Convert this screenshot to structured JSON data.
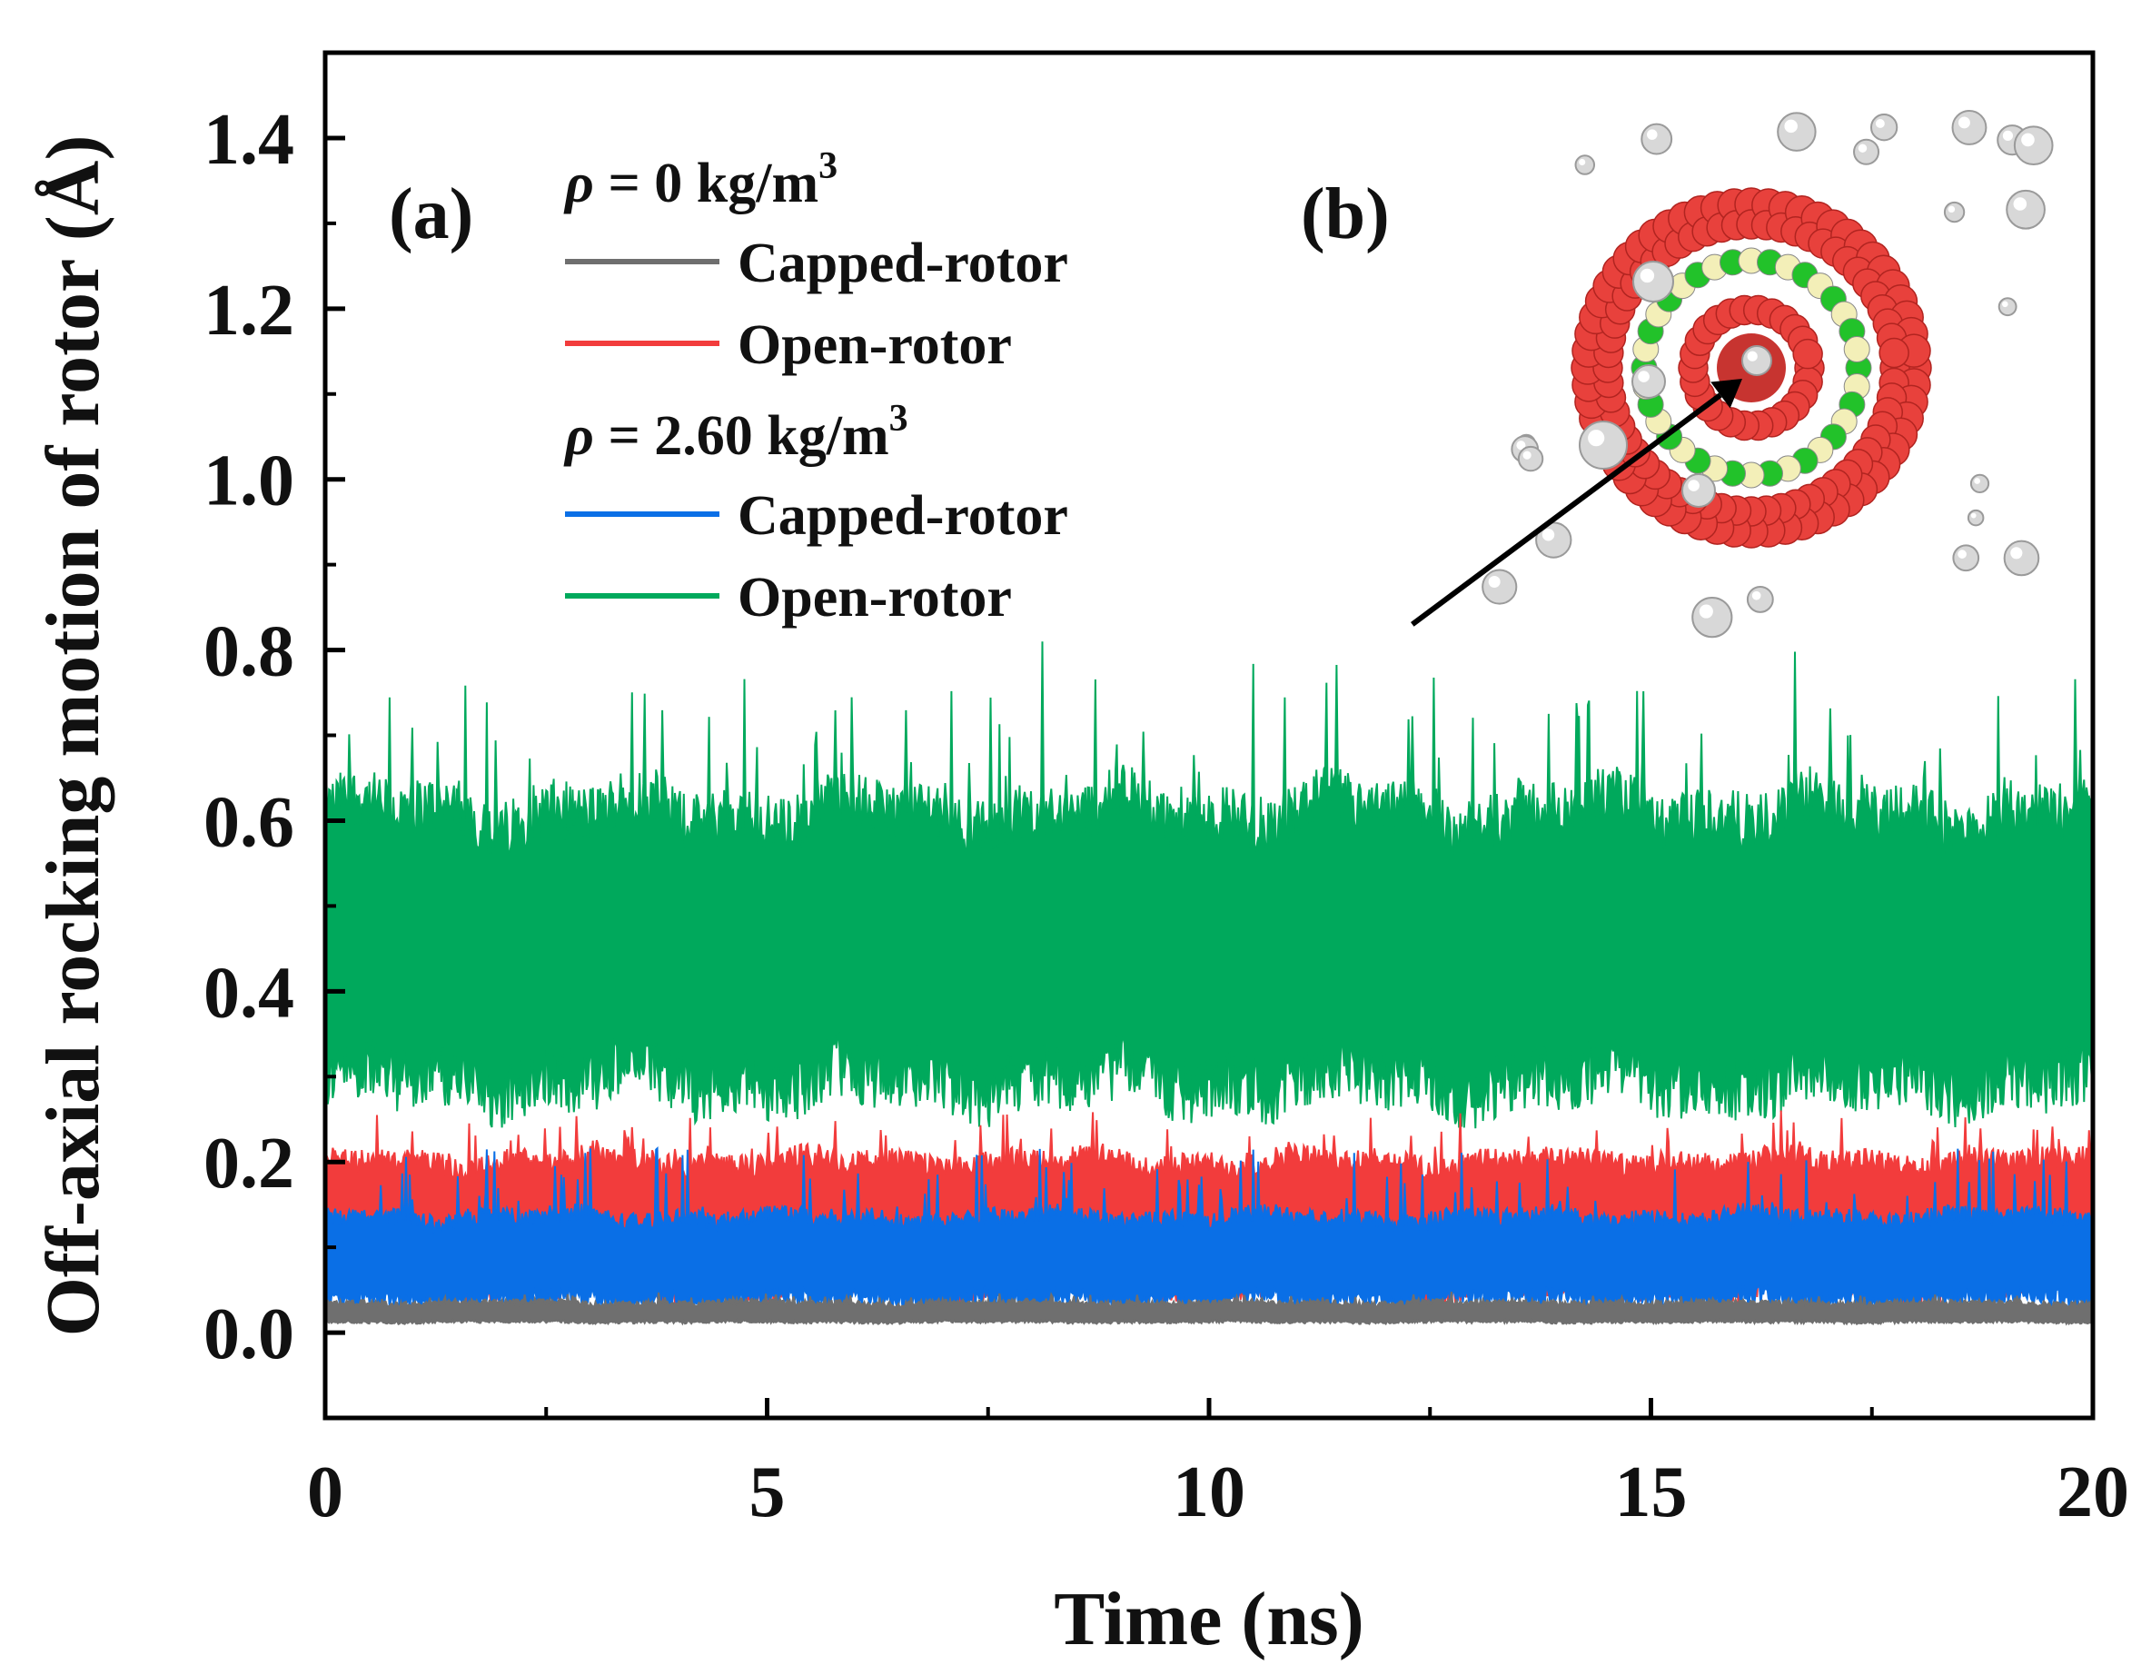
{
  "chart_data": {
    "type": "line",
    "title": "",
    "xlabel": "Time (ns)",
    "ylabel": "Off-axial rocking motion of rotor (Å)",
    "xlim": [
      0,
      20
    ],
    "ylim": [
      -0.1,
      1.5
    ],
    "xticks": [
      "0",
      "5",
      "10",
      "15",
      "20"
    ],
    "yticks": [
      "0.0",
      "0.2",
      "0.4",
      "0.6",
      "0.8",
      "1.0",
      "1.2",
      "1.4"
    ],
    "panel_labels": [
      "(a)",
      "(b)"
    ],
    "legend": {
      "placement": "top-left",
      "groups": [
        {
          "header_symbol": "ρ",
          "header_value": " = 0 kg/m",
          "header_exp": "3",
          "entries": [
            {
              "label": "Capped-rotor",
              "color": "#6f6f6f"
            },
            {
              "label": "Open-rotor",
              "color": "#f23c3c"
            }
          ]
        },
        {
          "header_symbol": "ρ",
          "header_value": " = 2.60 kg/m",
          "header_exp": "3",
          "entries": [
            {
              "label": "Capped-rotor",
              "color": "#0a6fe6"
            },
            {
              "label": "Open-rotor",
              "color": "#00a95c"
            }
          ]
        }
      ]
    },
    "series": [
      {
        "name": "ρ = 2.60 kg/m3 Open-rotor",
        "color": "#00a95c",
        "mean": 0.46,
        "band_low": 0.24,
        "band_high": 0.66,
        "spike_max": 0.83
      },
      {
        "name": "ρ = 0 kg/m3 Open-rotor",
        "color": "#f23c3c",
        "mean": 0.14,
        "band_low": 0.03,
        "band_high": 0.22,
        "spike_max": 0.27
      },
      {
        "name": "ρ = 2.60 kg/m3 Capped-rotor",
        "color": "#0a6fe6",
        "mean": 0.09,
        "band_low": 0.02,
        "band_high": 0.15,
        "spike_max": 0.23
      },
      {
        "name": "ρ = 0 kg/m3 Capped-rotor",
        "color": "#6f6f6f",
        "mean": 0.02,
        "band_low": 0.01,
        "band_high": 0.04,
        "spike_max": 0.05
      }
    ],
    "annotation": {
      "text": "arrow to inset (b)",
      "from_time_ns": 12.3,
      "from_value": 0.83
    }
  }
}
